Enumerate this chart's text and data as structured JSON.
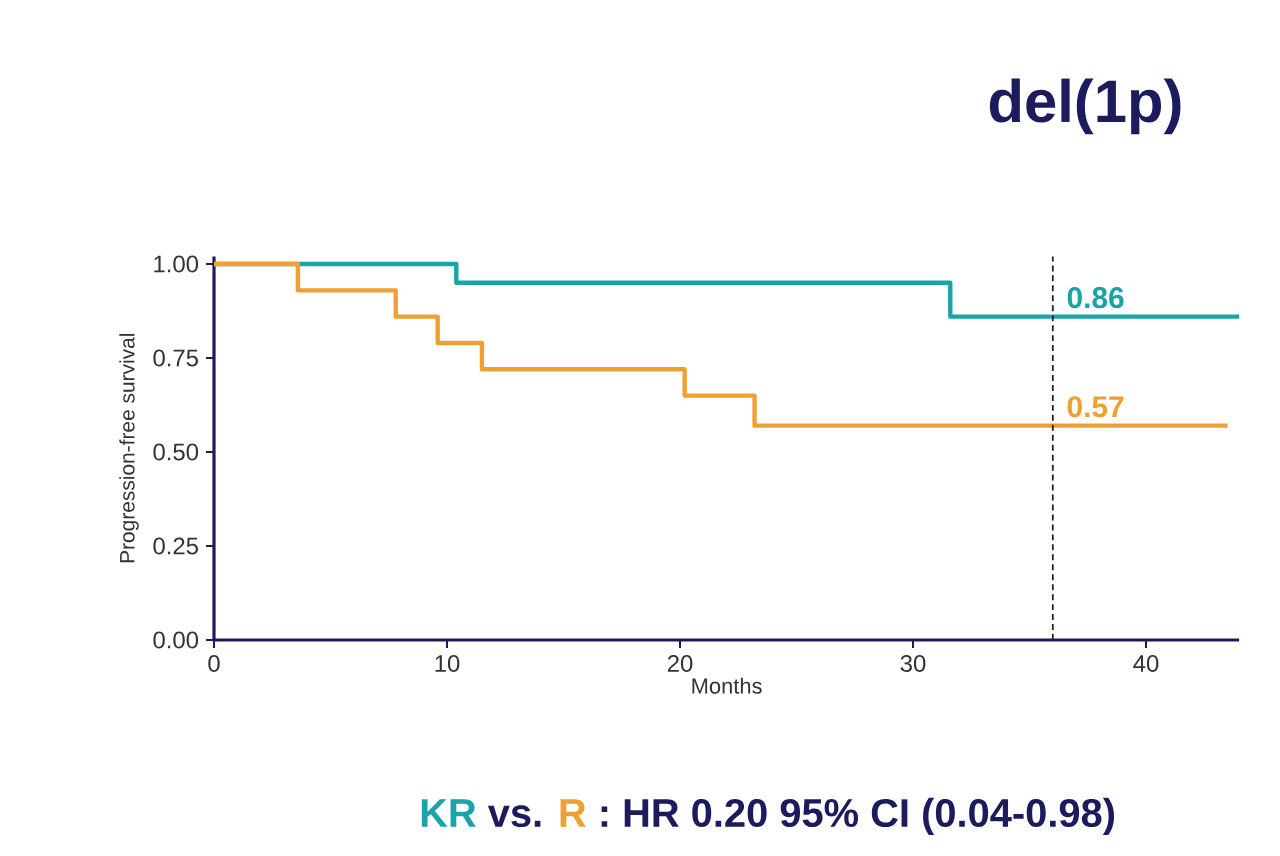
{
  "chart_data": {
    "type": "step",
    "title": "del(1p)",
    "xlabel": "Months",
    "ylabel": "Progression-free survival",
    "xlim": [
      0,
      44
    ],
    "ylim": [
      0,
      1.02
    ],
    "xticks": [
      0,
      10,
      20,
      30,
      40
    ],
    "yticks": [
      {
        "value": 0,
        "label": "0.00"
      },
      {
        "value": 0.25,
        "label": "0.25"
      },
      {
        "value": 0.5,
        "label": "0.50"
      },
      {
        "value": 0.75,
        "label": "0.75"
      },
      {
        "value": 1,
        "label": "1.00"
      }
    ],
    "series": [
      {
        "name": "KR",
        "color": "#1aa3a8",
        "x": [
          0,
          10.4,
          31.6,
          44
        ],
        "values": [
          1.0,
          0.95,
          0.86,
          0.86
        ]
      },
      {
        "name": "R",
        "color": "#f0a030",
        "x": [
          0,
          3.6,
          7.8,
          9.6,
          11.5,
          20.2,
          23.2,
          43.5
        ],
        "values": [
          1.0,
          0.93,
          0.86,
          0.79,
          0.72,
          0.65,
          0.57,
          0.57
        ]
      }
    ],
    "ref_lines": [
      {
        "axis": "x",
        "value": 36,
        "line_style": "dashed",
        "color": "#222222"
      }
    ],
    "annotations": [
      "vs.",
      ": HR 0.20 95% CI (0.04-0.98)",
      {
        "text": "0.86",
        "x": 36.4,
        "y": 0.86
      },
      {
        "text": "0.57",
        "x": 36.4,
        "y": 0.57
      }
    ],
    "legend": false,
    "grid": false
  }
}
